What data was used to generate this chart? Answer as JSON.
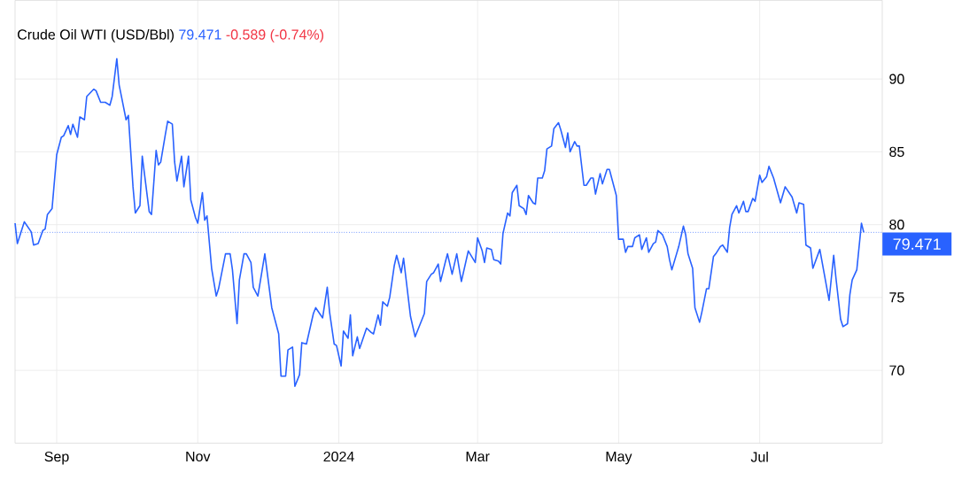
{
  "chart_data": {
    "type": "line",
    "title": "Crude Oil WTI (USD/Bbl)",
    "annotations": [
      "79.471",
      "-0.589 (-0.74%)"
    ],
    "x": [
      "2023-08-14",
      "2023-08-15",
      "2023-08-18",
      "2023-08-21",
      "2023-08-22",
      "2023-08-24",
      "2023-08-26",
      "2023-08-27",
      "2023-08-28",
      "2023-08-30",
      "2023-09-01",
      "2023-09-03",
      "2023-09-04",
      "2023-09-06",
      "2023-09-07",
      "2023-09-08",
      "2023-09-10",
      "2023-09-11",
      "2023-09-13",
      "2023-09-14",
      "2023-09-17",
      "2023-09-18",
      "2023-09-20",
      "2023-09-22",
      "2023-09-24",
      "2023-09-25",
      "2023-09-27",
      "2023-09-28",
      "2023-09-29",
      "2023-10-01",
      "2023-10-02",
      "2023-10-04",
      "2023-10-05",
      "2023-10-07",
      "2023-10-08",
      "2023-10-11",
      "2023-10-12",
      "2023-10-14",
      "2023-10-15",
      "2023-10-16",
      "2023-10-18",
      "2023-10-19",
      "2023-10-21",
      "2023-10-22",
      "2023-10-23",
      "2023-10-25",
      "2023-10-26",
      "2023-10-28",
      "2023-10-29",
      "2023-10-31",
      "2023-11-01",
      "2023-11-03",
      "2023-11-04",
      "2023-11-05",
      "2023-11-07",
      "2023-11-09",
      "2023-11-10",
      "2023-11-13",
      "2023-11-15",
      "2023-11-16",
      "2023-11-18",
      "2023-11-19",
      "2023-11-21",
      "2023-11-22",
      "2023-11-24",
      "2023-11-25",
      "2023-11-27",
      "2023-11-30",
      "2023-12-03",
      "2023-12-06",
      "2023-12-07",
      "2023-12-09",
      "2023-12-10",
      "2023-12-12",
      "2023-12-13",
      "2023-12-15",
      "2023-12-16",
      "2023-12-18",
      "2023-12-21",
      "2023-12-22",
      "2023-12-25",
      "2023-12-27",
      "2023-12-28",
      "2023-12-30",
      "2023-12-31",
      "2024-01-02",
      "2024-01-03",
      "2024-01-05",
      "2024-01-06",
      "2024-01-07",
      "2024-01-09",
      "2024-01-10",
      "2024-01-13",
      "2024-01-15",
      "2024-01-16",
      "2024-01-18",
      "2024-01-19",
      "2024-01-20",
      "2024-01-22",
      "2024-01-23",
      "2024-01-25",
      "2024-01-26",
      "2024-01-28",
      "2024-01-29",
      "2024-02-01",
      "2024-02-03",
      "2024-02-07",
      "2024-02-08",
      "2024-02-10",
      "2024-02-11",
      "2024-02-13",
      "2024-02-14",
      "2024-02-16",
      "2024-02-17",
      "2024-02-19",
      "2024-02-21",
      "2024-02-23",
      "2024-02-26",
      "2024-02-29",
      "2024-03-01",
      "2024-03-03",
      "2024-03-04",
      "2024-03-05",
      "2024-03-07",
      "2024-03-08",
      "2024-03-10",
      "2024-03-11",
      "2024-03-12",
      "2024-03-14",
      "2024-03-15",
      "2024-03-16",
      "2024-03-18",
      "2024-03-19",
      "2024-03-21",
      "2024-03-22",
      "2024-03-23",
      "2024-03-25",
      "2024-03-26",
      "2024-03-27",
      "2024-03-29",
      "2024-03-30",
      "2024-03-31",
      "2024-04-02",
      "2024-04-03",
      "2024-04-05",
      "2024-04-06",
      "2024-04-08",
      "2024-04-09",
      "2024-04-10",
      "2024-04-12",
      "2024-04-13",
      "2024-04-14",
      "2024-04-16",
      "2024-04-17",
      "2024-04-19",
      "2024-04-20",
      "2024-04-21",
      "2024-04-23",
      "2024-04-24",
      "2024-04-26",
      "2024-04-27",
      "2024-04-30",
      "2024-05-01",
      "2024-05-03",
      "2024-05-04",
      "2024-05-05",
      "2024-05-07",
      "2024-05-08",
      "2024-05-10",
      "2024-05-11",
      "2024-05-13",
      "2024-05-14",
      "2024-05-16",
      "2024-05-17",
      "2024-05-18",
      "2024-05-20",
      "2024-05-22",
      "2024-05-23",
      "2024-05-24",
      "2024-05-27",
      "2024-05-29",
      "2024-05-30",
      "2024-05-31",
      "2024-06-02",
      "2024-06-03",
      "2024-06-05",
      "2024-06-06",
      "2024-06-08",
      "2024-06-09",
      "2024-06-11",
      "2024-06-12",
      "2024-06-14",
      "2024-06-15",
      "2024-06-17",
      "2024-06-18",
      "2024-06-19",
      "2024-06-21",
      "2024-06-22",
      "2024-06-24",
      "2024-06-25",
      "2024-06-26",
      "2024-06-28",
      "2024-06-29",
      "2024-07-01",
      "2024-07-02",
      "2024-07-04",
      "2024-07-05",
      "2024-07-07",
      "2024-07-10",
      "2024-07-12",
      "2024-07-15",
      "2024-07-17",
      "2024-07-18",
      "2024-07-20",
      "2024-07-21",
      "2024-07-23",
      "2024-07-24",
      "2024-07-27",
      "2024-07-31",
      "2024-08-02",
      "2024-08-03",
      "2024-08-05",
      "2024-08-06",
      "2024-08-08",
      "2024-08-09",
      "2024-08-10",
      "2024-08-12",
      "2024-08-14",
      "2024-08-15"
    ],
    "series": [
      {
        "color": "#2962ff",
        "values": [
          80.1,
          78.7,
          80.2,
          79.5,
          78.6,
          78.7,
          79.6,
          79.7,
          80.7,
          81.1,
          84.8,
          86.0,
          86.1,
          86.8,
          86.2,
          86.9,
          86.0,
          87.4,
          87.2,
          88.8,
          89.3,
          89.2,
          88.4,
          88.4,
          88.2,
          88.8,
          91.4,
          89.6,
          88.8,
          87.2,
          87.5,
          82.6,
          80.8,
          81.3,
          84.7,
          80.9,
          80.7,
          85.1,
          84.1,
          84.3,
          86.2,
          87.1,
          86.9,
          84.3,
          83.0,
          84.7,
          82.6,
          84.7,
          81.7,
          80.5,
          80.1,
          82.2,
          80.3,
          80.6,
          77.0,
          75.1,
          75.6,
          78.0,
          78.0,
          76.9,
          73.2,
          76.2,
          78.0,
          78.0,
          77.4,
          75.7,
          75.1,
          78.0,
          74.3,
          72.5,
          69.6,
          69.6,
          71.4,
          71.6,
          68.9,
          69.7,
          71.9,
          71.8,
          73.9,
          74.3,
          73.6,
          75.7,
          74.0,
          71.8,
          71.7,
          70.3,
          72.7,
          72.2,
          73.8,
          71.0,
          72.3,
          71.5,
          72.9,
          72.6,
          72.5,
          73.8,
          73.1,
          74.7,
          74.4,
          75.0,
          77.2,
          77.9,
          76.7,
          77.7,
          73.7,
          72.3,
          73.9,
          76.1,
          76.6,
          76.7,
          77.3,
          76.1,
          77.4,
          78.0,
          76.6,
          78.0,
          76.1,
          78.2,
          77.4,
          79.1,
          78.2,
          77.4,
          78.4,
          78.3,
          77.6,
          77.5,
          77.3,
          79.4,
          80.8,
          80.6,
          82.2,
          82.7,
          81.3,
          81.1,
          80.7,
          82.0,
          81.5,
          81.4,
          83.2,
          83.2,
          83.7,
          85.2,
          85.4,
          86.6,
          87.0,
          86.5,
          85.3,
          86.3,
          85.0,
          85.7,
          85.4,
          85.4,
          82.7,
          82.7,
          83.2,
          83.2,
          82.1,
          83.5,
          82.8,
          83.8,
          83.8,
          82.0,
          79.0,
          79.0,
          78.1,
          78.5,
          78.5,
          79.1,
          79.3,
          78.3,
          79.1,
          78.1,
          78.7,
          78.8,
          79.6,
          79.3,
          78.5,
          77.6,
          76.9,
          78.5,
          79.9,
          79.3,
          78.0,
          77.0,
          74.3,
          73.3,
          74.0,
          75.6,
          75.6,
          77.8,
          78.0,
          78.5,
          78.6,
          78.1,
          79.8,
          80.7,
          81.3,
          80.8,
          81.6,
          80.9,
          80.9,
          81.8,
          81.6,
          83.4,
          82.9,
          83.3,
          84.0,
          83.2,
          81.5,
          82.6,
          81.9,
          80.8,
          81.5,
          81.4,
          78.6,
          78.4,
          77.0,
          78.3,
          74.8,
          77.9,
          76.3,
          73.5,
          73.0,
          73.2,
          75.2,
          76.2,
          76.9,
          80.1,
          79.471
        ]
      }
    ],
    "xlim": [
      "2023-08-14",
      "2024-08-23"
    ],
    "xticks": [
      {
        "value": "2023-09-01",
        "label": "Sep"
      },
      {
        "value": "2023-11-01",
        "label": "Nov"
      },
      {
        "value": "2024-01-01",
        "label": "2024"
      },
      {
        "value": "2024-03-01",
        "label": "Mar"
      },
      {
        "value": "2024-05-01",
        "label": "May"
      },
      {
        "value": "2024-07-01",
        "label": "Jul"
      }
    ],
    "ylim": [
      65,
      95.4
    ],
    "yticks": [
      70,
      75,
      80,
      85,
      90
    ],
    "grid": true,
    "line_style": "solid",
    "ref_lines": [
      {
        "axis": "y",
        "value": 79.471,
        "label": "79.471",
        "color": "#2962ff",
        "line_style": "dotted"
      }
    ]
  }
}
